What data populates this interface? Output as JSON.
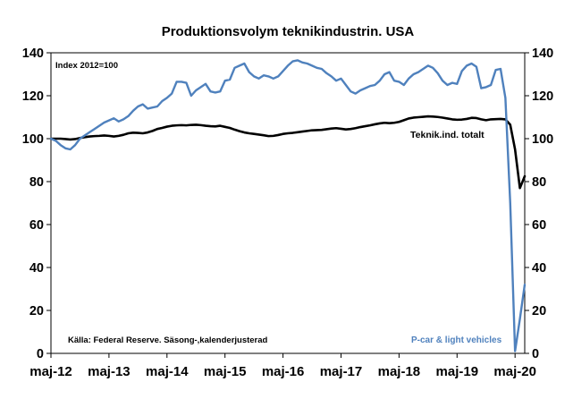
{
  "chart_data": {
    "type": "line",
    "title": "Produktionsvolym teknikindustrin. USA",
    "index_note": "Index  2012=100",
    "source_note": "Källa: Federal Reserve.  Säsong-,kalenderjusterad",
    "x_tick_labels": [
      "maj-12",
      "maj-13",
      "maj-14",
      "maj-15",
      "maj-16",
      "maj-17",
      "maj-18",
      "maj-19",
      "maj-20"
    ],
    "y_ticks": [
      0,
      20,
      40,
      60,
      80,
      100,
      120,
      140
    ],
    "ylim": [
      0,
      140
    ],
    "grid": false,
    "series": [
      {
        "name": "Teknik.ind. totalt",
        "color": "#000000",
        "values": [
          100.0,
          100.0,
          100.0,
          99.8,
          99.6,
          99.8,
          100.3,
          100.7,
          101.0,
          101.2,
          101.3,
          101.5,
          101.3,
          101.0,
          101.3,
          101.8,
          102.5,
          102.8,
          102.7,
          102.5,
          102.9,
          103.6,
          104.5,
          105.0,
          105.6,
          106.0,
          106.2,
          106.3,
          106.2,
          106.4,
          106.5,
          106.3,
          106.0,
          105.8,
          105.7,
          106.0,
          105.5,
          105.0,
          104.2,
          103.5,
          102.9,
          102.5,
          102.2,
          101.9,
          101.6,
          101.2,
          101.3,
          101.7,
          102.2,
          102.5,
          102.7,
          103.0,
          103.3,
          103.6,
          103.9,
          104.0,
          104.1,
          104.4,
          104.7,
          104.9,
          104.6,
          104.3,
          104.5,
          104.9,
          105.4,
          105.8,
          106.2,
          106.7,
          107.1,
          107.4,
          107.2,
          107.4,
          107.8,
          108.6,
          109.4,
          109.8,
          110.0,
          110.2,
          110.4,
          110.3,
          110.1,
          109.8,
          109.4,
          109.0,
          108.8,
          108.9,
          109.2,
          109.7,
          109.6,
          109.0,
          108.6,
          109.0,
          109.1,
          109.2,
          109.0,
          106.5,
          95.0,
          77.0,
          82.5
        ]
      },
      {
        "name": "P-car & light vehicles",
        "color": "#4f81bd",
        "values": [
          100.0,
          99.0,
          97.0,
          95.5,
          95.0,
          97.0,
          100.0,
          101.5,
          103.0,
          104.5,
          106.0,
          107.5,
          108.5,
          109.5,
          108.0,
          109.0,
          110.5,
          113.0,
          115.0,
          116.0,
          114.0,
          114.5,
          115.0,
          117.5,
          119.0,
          121.0,
          126.5,
          126.5,
          126.0,
          120.0,
          122.5,
          124.0,
          125.5,
          122.0,
          121.5,
          122.0,
          127.0,
          127.5,
          133.0,
          134.0,
          135.0,
          131.0,
          129.0,
          128.0,
          129.5,
          129.0,
          128.0,
          129.0,
          131.5,
          134.0,
          136.0,
          136.5,
          135.5,
          135.0,
          134.0,
          133.0,
          132.5,
          130.5,
          129.0,
          127.0,
          128.0,
          125.0,
          122.0,
          121.0,
          122.5,
          123.5,
          124.5,
          125.0,
          127.0,
          130.0,
          131.0,
          127.0,
          126.5,
          125.0,
          128.0,
          130.0,
          131.0,
          132.5,
          134.0,
          133.0,
          130.5,
          127.0,
          125.0,
          126.0,
          125.5,
          131.5,
          134.0,
          135.0,
          133.5,
          123.5,
          124.0,
          125.0,
          132.0,
          132.5,
          119.0,
          70.0,
          1.0,
          16.0,
          32.0
        ]
      }
    ]
  }
}
